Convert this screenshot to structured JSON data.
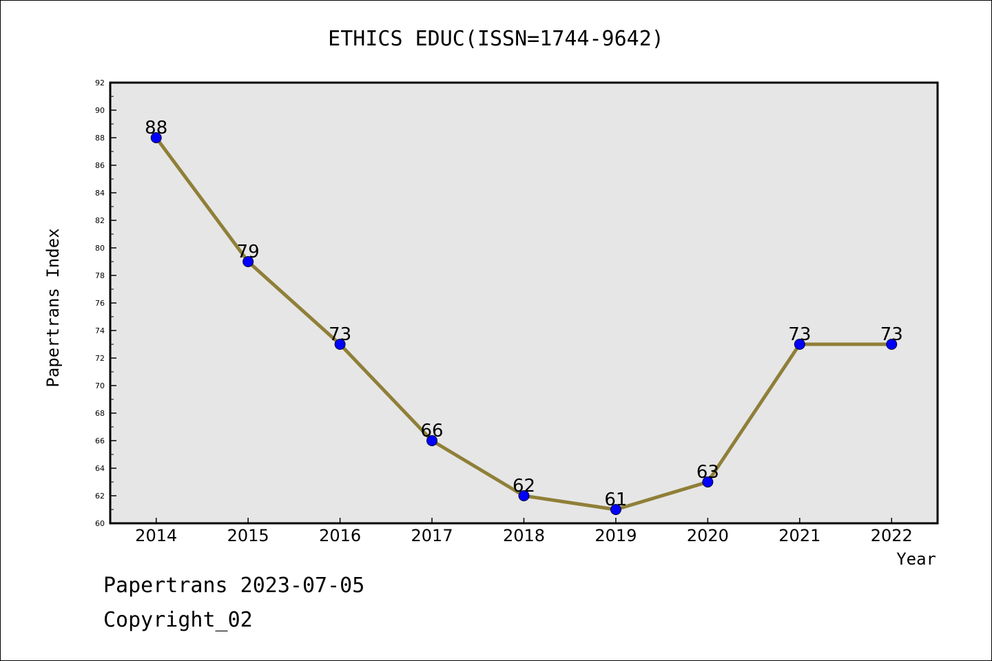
{
  "chart_data": {
    "type": "line",
    "title": "ETHICS EDUC(ISSN=1744-9642)",
    "xlabel": "Year",
    "ylabel": "Papertrans Index",
    "categories": [
      "2014",
      "2015",
      "2016",
      "2017",
      "2018",
      "2019",
      "2020",
      "2021",
      "2022"
    ],
    "series": [
      {
        "values": [
          88,
          79,
          73,
          66,
          62,
          61,
          63,
          73,
          73
        ]
      }
    ],
    "data_labels": [
      "88",
      "79",
      "73",
      "66",
      "62",
      "61",
      "63",
      "73",
      "73"
    ],
    "ylim": [
      60,
      92
    ],
    "y_ticks": [
      "60",
      "62",
      "64",
      "66",
      "68",
      "70",
      "72",
      "74",
      "76",
      "78",
      "80",
      "82",
      "84",
      "86",
      "88",
      "90",
      "92"
    ],
    "grid": false,
    "legend": "none"
  },
  "footer": {
    "line1": "Papertrans 2023-07-05",
    "line2": "Copyright_02"
  },
  "colors": {
    "line": "#8F7F38",
    "marker": "#0000FF",
    "plot_background": "#E6E6E6",
    "axis": "#000000"
  }
}
